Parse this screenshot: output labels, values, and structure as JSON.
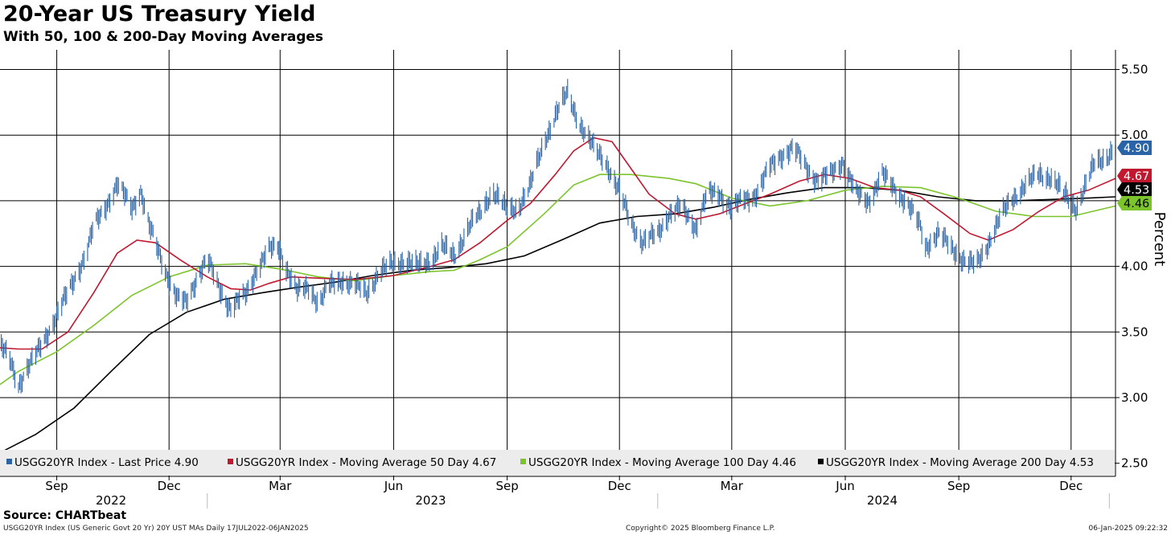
{
  "chart_data": {
    "type": "line",
    "title": "20-Year US Treasury Yield",
    "subtitle": "With 50, 100 & 200-Day Moving Averages",
    "ylabel": "Percent",
    "xlabel": "",
    "ylim": [
      2.4,
      5.65
    ],
    "yticks": [
      "2.50",
      "3.00",
      "3.50",
      "4.00",
      "4.50",
      "5.00",
      "5.50"
    ],
    "x_range": [
      "2022-07-17",
      "2025-01-06"
    ],
    "x_month_labels": [
      {
        "label": "Sep",
        "date": "2022-09-01"
      },
      {
        "label": "Dec",
        "date": "2022-12-01"
      },
      {
        "label": "Mar",
        "date": "2023-03-01"
      },
      {
        "label": "Jun",
        "date": "2023-06-01"
      },
      {
        "label": "Sep",
        "date": "2023-09-01"
      },
      {
        "label": "Dec",
        "date": "2023-12-01"
      },
      {
        "label": "Mar",
        "date": "2024-03-01"
      },
      {
        "label": "Jun",
        "date": "2024-06-01"
      },
      {
        "label": "Sep",
        "date": "2024-09-01"
      },
      {
        "label": "Dec",
        "date": "2024-12-01"
      }
    ],
    "x_year_labels": [
      {
        "label": "2022",
        "date": "2022-10-15"
      },
      {
        "label": "2023",
        "date": "2023-07-01"
      },
      {
        "label": "2024",
        "date": "2024-07-01"
      }
    ],
    "x_year_separators": [
      "2023-01-01",
      "2024-01-01",
      "2025-01-01"
    ],
    "series": [
      {
        "name": "USGG20YR Index - Last Price",
        "legend_label": "USGG20YR Index - Last Price 4.90",
        "last_value": "4.90",
        "color": "#2b64a6",
        "style": "price-bars",
        "points": [
          [
            "2022-07-17",
            3.4
          ],
          [
            "2022-07-25",
            3.28
          ],
          [
            "2022-08-01",
            3.1
          ],
          [
            "2022-08-08",
            3.22
          ],
          [
            "2022-08-15",
            3.32
          ],
          [
            "2022-08-25",
            3.5
          ],
          [
            "2022-09-05",
            3.7
          ],
          [
            "2022-09-15",
            3.9
          ],
          [
            "2022-09-25",
            4.1
          ],
          [
            "2022-10-01",
            4.3
          ],
          [
            "2022-10-10",
            4.45
          ],
          [
            "2022-10-20",
            4.62
          ],
          [
            "2022-10-25",
            4.55
          ],
          [
            "2022-11-01",
            4.45
          ],
          [
            "2022-11-08",
            4.58
          ],
          [
            "2022-11-15",
            4.3
          ],
          [
            "2022-11-25",
            4.05
          ],
          [
            "2022-12-01",
            3.9
          ],
          [
            "2022-12-08",
            3.75
          ],
          [
            "2022-12-15",
            3.72
          ],
          [
            "2022-12-25",
            3.95
          ],
          [
            "2023-01-01",
            4.05
          ],
          [
            "2023-01-10",
            3.85
          ],
          [
            "2023-01-20",
            3.68
          ],
          [
            "2023-02-01",
            3.78
          ],
          [
            "2023-02-10",
            3.98
          ],
          [
            "2023-02-20",
            4.12
          ],
          [
            "2023-02-28",
            4.15
          ],
          [
            "2023-03-05",
            4.02
          ],
          [
            "2023-03-15",
            3.8
          ],
          [
            "2023-03-25",
            3.85
          ],
          [
            "2023-04-01",
            3.72
          ],
          [
            "2023-04-10",
            3.85
          ],
          [
            "2023-04-20",
            3.9
          ],
          [
            "2023-05-01",
            3.85
          ],
          [
            "2023-05-10",
            3.8
          ],
          [
            "2023-05-20",
            3.95
          ],
          [
            "2023-06-01",
            4.02
          ],
          [
            "2023-06-10",
            4.05
          ],
          [
            "2023-06-20",
            4.0
          ],
          [
            "2023-07-01",
            4.05
          ],
          [
            "2023-07-10",
            4.15
          ],
          [
            "2023-07-20",
            4.08
          ],
          [
            "2023-08-01",
            4.3
          ],
          [
            "2023-08-10",
            4.4
          ],
          [
            "2023-08-20",
            4.58
          ],
          [
            "2023-08-25",
            4.52
          ],
          [
            "2023-09-01",
            4.42
          ],
          [
            "2023-09-10",
            4.45
          ],
          [
            "2023-09-20",
            4.62
          ],
          [
            "2023-10-01",
            4.95
          ],
          [
            "2023-10-10",
            5.15
          ],
          [
            "2023-10-20",
            5.32
          ],
          [
            "2023-10-25",
            5.2
          ],
          [
            "2023-11-01",
            5.05
          ],
          [
            "2023-11-10",
            4.9
          ],
          [
            "2023-11-20",
            4.8
          ],
          [
            "2023-11-30",
            4.58
          ],
          [
            "2023-12-10",
            4.35
          ],
          [
            "2023-12-20",
            4.18
          ],
          [
            "2024-01-01",
            4.25
          ],
          [
            "2024-01-10",
            4.4
          ],
          [
            "2024-01-20",
            4.45
          ],
          [
            "2024-02-01",
            4.3
          ],
          [
            "2024-02-10",
            4.55
          ],
          [
            "2024-02-20",
            4.55
          ],
          [
            "2024-03-01",
            4.45
          ],
          [
            "2024-03-10",
            4.5
          ],
          [
            "2024-03-20",
            4.55
          ],
          [
            "2024-04-01",
            4.75
          ],
          [
            "2024-04-10",
            4.85
          ],
          [
            "2024-04-20",
            4.9
          ],
          [
            "2024-05-01",
            4.75
          ],
          [
            "2024-05-10",
            4.65
          ],
          [
            "2024-05-20",
            4.7
          ],
          [
            "2024-05-30",
            4.8
          ],
          [
            "2024-06-10",
            4.55
          ],
          [
            "2024-06-20",
            4.5
          ],
          [
            "2024-07-01",
            4.7
          ],
          [
            "2024-07-10",
            4.6
          ],
          [
            "2024-07-20",
            4.5
          ],
          [
            "2024-08-01",
            4.3
          ],
          [
            "2024-08-05",
            4.15
          ],
          [
            "2024-08-15",
            4.25
          ],
          [
            "2024-08-25",
            4.15
          ],
          [
            "2024-09-05",
            4.05
          ],
          [
            "2024-09-15",
            4.0
          ],
          [
            "2024-09-25",
            4.18
          ],
          [
            "2024-10-05",
            4.38
          ],
          [
            "2024-10-15",
            4.52
          ],
          [
            "2024-10-25",
            4.62
          ],
          [
            "2024-11-05",
            4.7
          ],
          [
            "2024-11-15",
            4.68
          ],
          [
            "2024-11-25",
            4.55
          ],
          [
            "2024-12-05",
            4.45
          ],
          [
            "2024-12-10",
            4.55
          ],
          [
            "2024-12-20",
            4.78
          ],
          [
            "2024-12-31",
            4.85
          ],
          [
            "2025-01-06",
            4.9
          ]
        ]
      },
      {
        "name": "USGG20YR Index - Moving Average 50 Day",
        "legend_label": "USGG20YR Index - Moving Average 50 Day 4.67",
        "last_value": "4.67",
        "color": "#c0182f",
        "style": "line",
        "points": [
          [
            "2022-07-17",
            3.38
          ],
          [
            "2022-08-01",
            3.37
          ],
          [
            "2022-08-20",
            3.37
          ],
          [
            "2022-09-10",
            3.5
          ],
          [
            "2022-10-01",
            3.8
          ],
          [
            "2022-10-20",
            4.1
          ],
          [
            "2022-11-05",
            4.2
          ],
          [
            "2022-11-20",
            4.18
          ],
          [
            "2022-12-10",
            4.05
          ],
          [
            "2023-01-01",
            3.92
          ],
          [
            "2023-01-20",
            3.83
          ],
          [
            "2023-02-05",
            3.82
          ],
          [
            "2023-02-20",
            3.87
          ],
          [
            "2023-03-10",
            3.92
          ],
          [
            "2023-04-01",
            3.91
          ],
          [
            "2023-05-01",
            3.9
          ],
          [
            "2023-06-01",
            3.93
          ],
          [
            "2023-07-01",
            4.0
          ],
          [
            "2023-07-20",
            4.05
          ],
          [
            "2023-08-10",
            4.18
          ],
          [
            "2023-09-01",
            4.35
          ],
          [
            "2023-09-20",
            4.48
          ],
          [
            "2023-10-10",
            4.7
          ],
          [
            "2023-10-25",
            4.88
          ],
          [
            "2023-11-10",
            4.98
          ],
          [
            "2023-11-25",
            4.95
          ],
          [
            "2023-12-10",
            4.75
          ],
          [
            "2023-12-25",
            4.55
          ],
          [
            "2024-01-15",
            4.4
          ],
          [
            "2024-02-01",
            4.36
          ],
          [
            "2024-02-20",
            4.4
          ],
          [
            "2024-03-10",
            4.47
          ],
          [
            "2024-04-01",
            4.55
          ],
          [
            "2024-04-25",
            4.65
          ],
          [
            "2024-05-15",
            4.7
          ],
          [
            "2024-06-05",
            4.67
          ],
          [
            "2024-06-25",
            4.6
          ],
          [
            "2024-07-15",
            4.58
          ],
          [
            "2024-08-01",
            4.53
          ],
          [
            "2024-08-20",
            4.4
          ],
          [
            "2024-09-10",
            4.25
          ],
          [
            "2024-09-25",
            4.2
          ],
          [
            "2024-10-15",
            4.28
          ],
          [
            "2024-11-05",
            4.42
          ],
          [
            "2024-11-25",
            4.53
          ],
          [
            "2024-12-15",
            4.58
          ],
          [
            "2025-01-06",
            4.67
          ]
        ]
      },
      {
        "name": "USGG20YR Index - Moving Average 100 Day",
        "legend_label": "USGG20YR Index - Moving Average 100 Day 4.46",
        "last_value": "4.46",
        "color": "#7cc42b",
        "style": "line",
        "points": [
          [
            "2022-07-17",
            3.1
          ],
          [
            "2022-08-01",
            3.2
          ],
          [
            "2022-09-01",
            3.35
          ],
          [
            "2022-10-01",
            3.55
          ],
          [
            "2022-11-01",
            3.78
          ],
          [
            "2022-12-01",
            3.92
          ],
          [
            "2023-01-01",
            4.01
          ],
          [
            "2023-02-01",
            4.02
          ],
          [
            "2023-03-01",
            3.98
          ],
          [
            "2023-04-01",
            3.92
          ],
          [
            "2023-05-01",
            3.89
          ],
          [
            "2023-06-01",
            3.93
          ],
          [
            "2023-07-01",
            3.96
          ],
          [
            "2023-07-20",
            3.97
          ],
          [
            "2023-08-10",
            4.05
          ],
          [
            "2023-09-01",
            4.15
          ],
          [
            "2023-10-01",
            4.4
          ],
          [
            "2023-10-25",
            4.62
          ],
          [
            "2023-11-15",
            4.7
          ],
          [
            "2023-12-10",
            4.7
          ],
          [
            "2024-01-10",
            4.67
          ],
          [
            "2024-02-01",
            4.63
          ],
          [
            "2024-03-01",
            4.52
          ],
          [
            "2024-04-01",
            4.46
          ],
          [
            "2024-05-01",
            4.5
          ],
          [
            "2024-06-01",
            4.58
          ],
          [
            "2024-07-01",
            4.61
          ],
          [
            "2024-08-01",
            4.6
          ],
          [
            "2024-09-01",
            4.52
          ],
          [
            "2024-10-01",
            4.42
          ],
          [
            "2024-11-01",
            4.38
          ],
          [
            "2024-12-01",
            4.38
          ],
          [
            "2025-01-06",
            4.46
          ]
        ]
      },
      {
        "name": "USGG20YR Index - Moving Average 200 Day",
        "legend_label": "USGG20YR Index - Moving Average 200 Day 4.53",
        "last_value": "4.53",
        "color": "#000000",
        "style": "line",
        "points": [
          [
            "2022-07-17",
            2.58
          ],
          [
            "2022-08-15",
            2.72
          ],
          [
            "2022-09-15",
            2.92
          ],
          [
            "2022-10-15",
            3.2
          ],
          [
            "2022-11-15",
            3.48
          ],
          [
            "2022-12-15",
            3.65
          ],
          [
            "2023-01-15",
            3.75
          ],
          [
            "2023-02-15",
            3.8
          ],
          [
            "2023-03-15",
            3.84
          ],
          [
            "2023-04-15",
            3.88
          ],
          [
            "2023-05-15",
            3.93
          ],
          [
            "2023-06-15",
            3.97
          ],
          [
            "2023-07-15",
            3.99
          ],
          [
            "2023-08-15",
            4.02
          ],
          [
            "2023-09-15",
            4.08
          ],
          [
            "2023-10-15",
            4.2
          ],
          [
            "2023-11-15",
            4.33
          ],
          [
            "2023-12-15",
            4.38
          ],
          [
            "2024-01-15",
            4.4
          ],
          [
            "2024-02-15",
            4.45
          ],
          [
            "2024-03-15",
            4.51
          ],
          [
            "2024-04-15",
            4.56
          ],
          [
            "2024-05-15",
            4.6
          ],
          [
            "2024-06-15",
            4.6
          ],
          [
            "2024-07-15",
            4.58
          ],
          [
            "2024-08-15",
            4.53
          ],
          [
            "2024-09-15",
            4.5
          ],
          [
            "2024-10-15",
            4.5
          ],
          [
            "2024-11-15",
            4.51
          ],
          [
            "2024-12-15",
            4.52
          ],
          [
            "2025-01-06",
            4.53
          ]
        ]
      }
    ],
    "value_tags": [
      {
        "text": "4.90",
        "value": 4.9,
        "color": "#2b64a6",
        "text_color": "#ffffff"
      },
      {
        "text": "4.67",
        "value": 4.67,
        "color": "#c0182f",
        "text_color": "#ffffff"
      },
      {
        "text": "4.53",
        "value": 4.53,
        "color": "#000000",
        "text_color": "#ffffff"
      },
      {
        "text": "4.46",
        "value": 4.46,
        "color": "#7cc42b",
        "text_color": "#000000"
      }
    ],
    "legend_position": "bottom"
  },
  "footer": {
    "source": "Source: CHARTbeat",
    "index_note": "USGG20YR Index (US Generic Govt 20 Yr) 20Y UST MAs  Daily 17JUL2022-06JAN2025",
    "copyright": "Copyright© 2025 Bloomberg Finance L.P.",
    "timestamp": "06-Jan-2025 09:22:32"
  }
}
